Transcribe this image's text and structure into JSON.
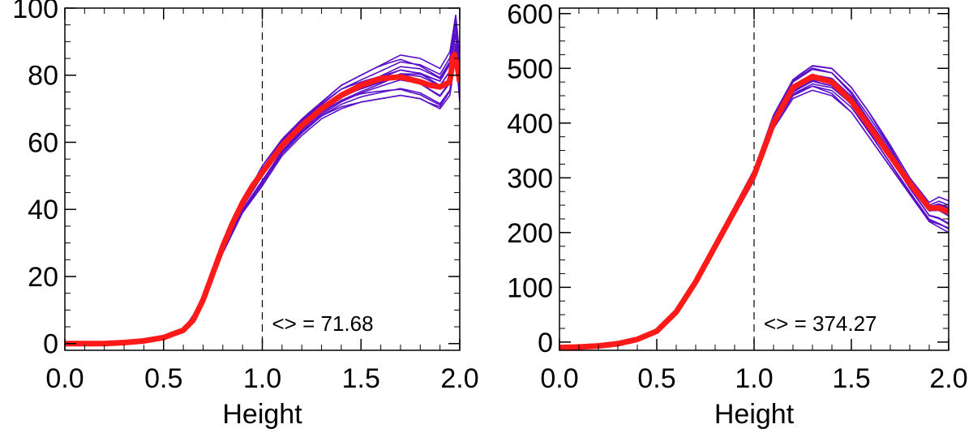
{
  "colors": {
    "ensemble": "#5a10c8",
    "mean": "#ff1a1a",
    "axis": "#000000",
    "refline": "#000000"
  },
  "chart_data": [
    {
      "type": "line",
      "xlabel": "Height",
      "ylabel": "",
      "xlim": [
        0.0,
        2.0
      ],
      "ylim": [
        -2,
        100
      ],
      "x_ticks": [
        0.0,
        0.5,
        1.0,
        1.5,
        2.0
      ],
      "x_tick_labels": [
        "0.0",
        "0.5",
        "1.0",
        "1.5",
        "2.0"
      ],
      "y_ticks": [
        0,
        20,
        40,
        60,
        80,
        100
      ],
      "y_tick_labels": [
        "0",
        "20",
        "40",
        "60",
        "80",
        "100"
      ],
      "reference_line_x": 1.0,
      "annotation": "<> = 71.68",
      "series": [
        {
          "name": "mean",
          "x": [
            0.0,
            0.1,
            0.2,
            0.3,
            0.4,
            0.5,
            0.6,
            0.65,
            0.7,
            0.75,
            0.8,
            0.85,
            0.9,
            0.95,
            1.0,
            1.05,
            1.1,
            1.2,
            1.3,
            1.4,
            1.5,
            1.6,
            1.7,
            1.8,
            1.85,
            1.9,
            1.95,
            1.97,
            1.99,
            2.0
          ],
          "values": [
            0,
            0,
            0,
            0.3,
            0.8,
            1.8,
            4,
            7,
            13,
            21,
            29,
            36,
            42,
            47,
            51,
            55,
            59,
            65,
            70,
            74,
            77,
            79,
            79.5,
            78,
            77,
            76.5,
            78,
            87,
            82,
            78
          ]
        },
        {
          "name": "ensemble-high",
          "x": [
            0.0,
            0.2,
            0.4,
            0.5,
            0.6,
            0.7,
            0.8,
            0.9,
            1.0,
            1.1,
            1.2,
            1.3,
            1.4,
            1.5,
            1.6,
            1.7,
            1.8,
            1.9,
            1.95,
            1.98,
            2.0
          ],
          "values": [
            0,
            0,
            0.8,
            1.8,
            4,
            13,
            29,
            42,
            53,
            61,
            67,
            72,
            77,
            80,
            83,
            86,
            85,
            82,
            87,
            98,
            85
          ]
        },
        {
          "name": "ensemble-low",
          "x": [
            0.0,
            0.2,
            0.4,
            0.5,
            0.6,
            0.7,
            0.8,
            0.9,
            1.0,
            1.1,
            1.2,
            1.3,
            1.4,
            1.5,
            1.6,
            1.7,
            1.8,
            1.9,
            1.95,
            1.98,
            2.0
          ],
          "values": [
            0,
            0,
            0.8,
            1.8,
            4,
            12,
            27,
            39,
            47,
            56,
            62,
            67,
            70,
            72,
            73,
            74,
            73,
            70,
            74,
            86,
            72
          ]
        }
      ]
    },
    {
      "type": "line",
      "xlabel": "Height",
      "ylabel": "",
      "xlim": [
        0.0,
        2.0
      ],
      "ylim": [
        -15,
        610
      ],
      "x_ticks": [
        0.0,
        0.5,
        1.0,
        1.5,
        2.0
      ],
      "x_tick_labels": [
        "0.0",
        "0.5",
        "1.0",
        "1.5",
        "2.0"
      ],
      "y_ticks": [
        0,
        100,
        200,
        300,
        400,
        500,
        600
      ],
      "y_tick_labels": [
        "0",
        "100",
        "200",
        "300",
        "400",
        "500",
        "600"
      ],
      "reference_line_x": 1.0,
      "annotation": "<> = 374.27",
      "series": [
        {
          "name": "mean",
          "x": [
            0.0,
            0.1,
            0.2,
            0.3,
            0.4,
            0.5,
            0.6,
            0.7,
            0.8,
            0.9,
            1.0,
            1.1,
            1.2,
            1.3,
            1.4,
            1.5,
            1.6,
            1.7,
            1.8,
            1.9,
            1.95,
            2.0
          ],
          "values": [
            -10,
            -9,
            -7,
            -3,
            5,
            20,
            55,
            110,
            175,
            240,
            305,
            400,
            465,
            485,
            475,
            440,
            390,
            340,
            290,
            245,
            245,
            238
          ]
        },
        {
          "name": "ensemble-high",
          "x": [
            0.0,
            0.1,
            0.2,
            0.3,
            0.4,
            0.5,
            0.6,
            0.7,
            0.8,
            0.9,
            1.0,
            1.1,
            1.2,
            1.3,
            1.4,
            1.5,
            1.6,
            1.7,
            1.8,
            1.9,
            1.95,
            2.0
          ],
          "values": [
            -10,
            -9,
            -7,
            -3,
            5,
            22,
            58,
            115,
            182,
            248,
            315,
            415,
            480,
            505,
            500,
            465,
            415,
            360,
            300,
            255,
            265,
            258
          ]
        },
        {
          "name": "ensemble-low",
          "x": [
            0.0,
            0.1,
            0.2,
            0.3,
            0.4,
            0.5,
            0.6,
            0.7,
            0.8,
            0.9,
            1.0,
            1.1,
            1.2,
            1.3,
            1.4,
            1.5,
            1.6,
            1.7,
            1.8,
            1.9,
            1.95,
            2.0
          ],
          "values": [
            -10,
            -9,
            -7,
            -3,
            5,
            18,
            52,
            105,
            168,
            232,
            295,
            390,
            445,
            460,
            450,
            420,
            370,
            320,
            270,
            220,
            210,
            200
          ]
        }
      ]
    }
  ]
}
